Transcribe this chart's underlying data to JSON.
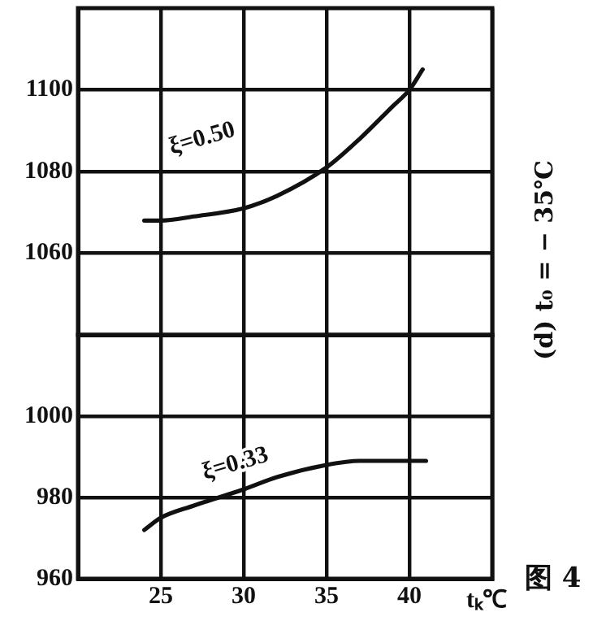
{
  "chart_data": [
    {
      "type": "line",
      "xlim": [
        20,
        45
      ],
      "xticks": [
        20,
        25,
        30,
        35,
        40,
        45
      ],
      "ylim": [
        1040,
        1120
      ],
      "yticks": [
        1060,
        1080,
        1100
      ],
      "grid": true,
      "legend": false,
      "tick_labels": "y",
      "marker": "none",
      "series": [
        {
          "color": "#111111",
          "x": [
            24,
            25,
            27,
            30,
            32,
            35,
            37,
            39,
            40,
            40.8
          ],
          "values": [
            1068,
            1068,
            1069,
            1071,
            1074,
            1081,
            1088,
            1096,
            1100,
            1105
          ]
        }
      ],
      "annotations": [
        "ξ=0.50",
        "(d) t₀ = − 35℃"
      ]
    },
    {
      "type": "line",
      "xlim": [
        20,
        45
      ],
      "xticks": [
        {
          "value": 20,
          "label": null
        },
        25,
        30,
        35,
        40,
        {
          "value": 45,
          "label": null
        }
      ],
      "ylim": [
        960,
        1020
      ],
      "yticks": [
        960,
        980,
        1000
      ],
      "grid": true,
      "legend": false,
      "marker": "none",
      "xlabel": "tₖ℃",
      "series": [
        {
          "color": "#111111",
          "x": [
            24,
            25,
            27,
            30,
            32,
            35,
            37,
            40,
            41
          ],
          "values": [
            972,
            975,
            978,
            982,
            985,
            988,
            989,
            989,
            989
          ]
        }
      ],
      "annotations": [
        "ξ=0.33",
        "图 4"
      ]
    }
  ]
}
